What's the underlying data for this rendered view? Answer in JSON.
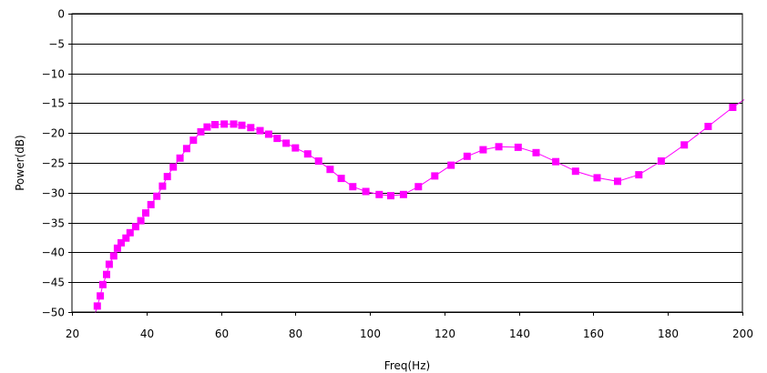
{
  "chart_data": {
    "type": "line",
    "xlabel": "Freq(Hz)",
    "ylabel": "Power(dB)",
    "xlim": [
      20,
      200
    ],
    "ylim": [
      -50,
      0
    ],
    "x_ticks": [
      20,
      40,
      60,
      80,
      100,
      120,
      140,
      160,
      180,
      200
    ],
    "y_ticks": [
      0,
      -5,
      -10,
      -15,
      -20,
      -25,
      -30,
      -35,
      -40,
      -45,
      -50
    ],
    "grid": "horizontal",
    "legend": "none",
    "colors": {
      "series": "#ff00ff",
      "grid": "#000000",
      "axis": "#000000"
    },
    "series": [
      {
        "marker": "square",
        "points": [
          [
            25.9,
            -51.0
          ],
          [
            26.8,
            -49.0
          ],
          [
            27.6,
            -47.3
          ],
          [
            28.3,
            -45.4
          ],
          [
            29.3,
            -43.7
          ],
          [
            30.0,
            -42.0
          ],
          [
            31.2,
            -40.6
          ],
          [
            32.2,
            -39.3
          ],
          [
            33.2,
            -38.4
          ],
          [
            34.5,
            -37.6
          ],
          [
            35.6,
            -36.7
          ],
          [
            37.1,
            -35.7
          ],
          [
            38.5,
            -34.7
          ],
          [
            39.8,
            -33.4
          ],
          [
            41.2,
            -32.0
          ],
          [
            42.8,
            -30.6
          ],
          [
            44.3,
            -28.9
          ],
          [
            45.6,
            -27.3
          ],
          [
            47.2,
            -25.7
          ],
          [
            49.0,
            -24.2
          ],
          [
            50.8,
            -22.6
          ],
          [
            52.6,
            -21.2
          ],
          [
            54.6,
            -19.8
          ],
          [
            56.3,
            -19.0
          ],
          [
            58.4,
            -18.6
          ],
          [
            60.9,
            -18.5
          ],
          [
            63.4,
            -18.5
          ],
          [
            65.6,
            -18.7
          ],
          [
            68.0,
            -19.1
          ],
          [
            70.5,
            -19.6
          ],
          [
            72.8,
            -20.2
          ],
          [
            75.1,
            -20.9
          ],
          [
            77.5,
            -21.7
          ],
          [
            80.0,
            -22.5
          ],
          [
            83.3,
            -23.5
          ],
          [
            86.2,
            -24.7
          ],
          [
            89.3,
            -26.1
          ],
          [
            92.3,
            -27.6
          ],
          [
            95.4,
            -29.0
          ],
          [
            98.9,
            -29.8
          ],
          [
            102.5,
            -30.3
          ],
          [
            105.6,
            -30.5
          ],
          [
            109.0,
            -30.3
          ],
          [
            113.0,
            -29.0
          ],
          [
            117.4,
            -27.2
          ],
          [
            121.8,
            -25.4
          ],
          [
            126.1,
            -23.9
          ],
          [
            130.4,
            -22.8
          ],
          [
            134.6,
            -22.3
          ],
          [
            139.8,
            -22.4
          ],
          [
            144.6,
            -23.3
          ],
          [
            149.9,
            -24.8
          ],
          [
            155.2,
            -26.4
          ],
          [
            161.0,
            -27.5
          ],
          [
            166.5,
            -28.1
          ],
          [
            172.2,
            -27.0
          ],
          [
            178.2,
            -24.7
          ],
          [
            184.4,
            -22.0
          ],
          [
            190.8,
            -18.9
          ],
          [
            197.4,
            -15.7
          ],
          [
            200.5,
            -14.4
          ]
        ]
      }
    ]
  }
}
